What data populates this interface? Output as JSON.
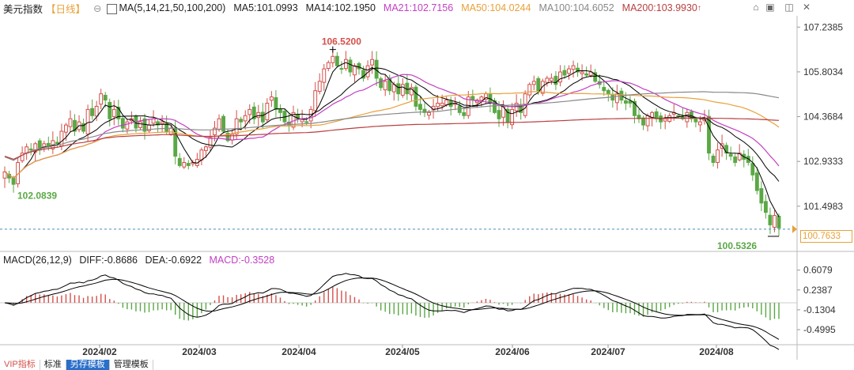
{
  "toolbar": {
    "title": "美元指数",
    "period": "【日线】",
    "dot": "⊖",
    "ma_label": "MA(5,14,21,50,100,200)",
    "ma5": "MA5:101.0993",
    "ma14": "MA14:102.1950",
    "ma21": "MA21:102.7156",
    "ma50": "MA50:104.0244",
    "ma100": "MA100:104.6052",
    "ma200": "MA200:103.9930",
    "ma200_arrow": "↑"
  },
  "window_controls": [
    "⌂",
    "▣",
    "◫",
    "✕"
  ],
  "macd": {
    "label": "MACD(26,12,9)",
    "diff": "DIFF:-0.8686",
    "dea": "DEA:-0.6922",
    "macd_val": "MACD:-0.3528"
  },
  "annotations": {
    "high": "106.5200",
    "low_left": "102.0839",
    "low_right": "100.5326",
    "last_price": "100.7633"
  },
  "bottom_tabs": [
    "VIP指标",
    "标准",
    "另存模板",
    "管理模板"
  ],
  "colors": {
    "up": "#d4504a",
    "down": "#5aa845",
    "ma5": "#000000",
    "ma14": "#000000",
    "ma21": "#c33fc3",
    "ma50": "#e8a13a",
    "ma100": "#888888",
    "ma200": "#b84040",
    "diff": "#000000",
    "dea": "#000000"
  },
  "chart_data": [
    {
      "type": "candlestick",
      "title": "美元指数 日线",
      "x_ticks": [
        "2024/02",
        "2024/03",
        "2024/04",
        "2024/05",
        "2024/06",
        "2024/07",
        "2024/08"
      ],
      "y_ticks": [
        107.2385,
        105.8034,
        104.3684,
        102.9333,
        101.4983
      ],
      "ylim": [
        100.1,
        107.6
      ],
      "price_line": 100.7633,
      "series_closes": [
        102.6,
        102.4,
        102.2,
        102.9,
        103.2,
        103.4,
        103.3,
        103.5,
        103.3,
        103.5,
        103.4,
        103.6,
        103.5,
        103.9,
        104.1,
        104.3,
        103.9,
        104.2,
        103.9,
        104.6,
        104.4,
        104.7,
        105.1,
        104.9,
        104.3,
        104.6,
        104.3,
        104.0,
        104.2,
        104.3,
        104.0,
        104.2,
        103.9,
        104.1,
        104.3,
        104.1,
        104.2,
        103.9,
        104.0,
        103.1,
        102.8,
        102.9,
        102.8,
        102.9,
        103.0,
        103.3,
        103.4,
        103.7,
        104.0,
        104.3,
        103.9,
        103.6,
        103.8,
        104.3,
        104.2,
        104.4,
        104.6,
        104.3,
        104.5,
        104.2,
        104.8,
        105.0,
        104.6,
        104.5,
        104.2,
        104.1,
        104.5,
        104.3,
        104.3,
        104.2,
        104.6,
        105.2,
        105.5,
        105.9,
        106.1,
        106.3,
        106.0,
        105.9,
        106.2,
        105.8,
        106.0,
        105.9,
        105.6,
        106.0,
        106.2,
        105.6,
        105.3,
        105.5,
        105.2,
        105.4,
        105.1,
        105.4,
        105.1,
        105.3,
        104.7,
        104.6,
        104.5,
        104.5,
        104.7,
        104.8,
        104.8,
        104.9,
        104.7,
        104.8,
        104.5,
        104.4,
        105.0,
        104.9,
        104.9,
        105.0,
        105.1,
        104.8,
        104.5,
        104.3,
        104.7,
        104.2,
        104.6,
        104.8,
        104.5,
        105.1,
        105.4,
        105.5,
        105.2,
        105.5,
        105.6,
        105.6,
        105.4,
        105.8,
        105.7,
        105.9,
        106.0,
        105.8,
        105.8,
        105.7,
        105.8,
        105.5,
        105.4,
        105.2,
        105.1,
        104.9,
        105.1,
        104.9,
        104.8,
        104.8,
        104.4,
        104.3,
        104.1,
        104.4,
        104.5,
        104.3,
        104.2,
        104.3,
        104.4,
        104.5,
        104.4,
        104.3,
        104.5,
        104.3,
        104.2,
        104.2,
        104.3,
        103.2,
        102.9,
        103.3,
        103.5,
        103.2,
        103.1,
        102.9,
        103.2,
        103.0,
        102.9,
        102.5,
        102.0,
        101.6,
        101.3,
        100.9,
        101.2,
        100.8
      ],
      "moving_averages": [
        "MA5",
        "MA14",
        "MA21",
        "MA50",
        "MA100",
        "MA200"
      ]
    },
    {
      "type": "bar",
      "title": "MACD(26,12,9)",
      "y_ticks": [
        0.6079,
        0.2387,
        -0.1304,
        -0.4995
      ],
      "ylim": [
        -0.75,
        0.75
      ],
      "series": [
        {
          "name": "DIFF",
          "type": "line"
        },
        {
          "name": "DEA",
          "type": "line"
        },
        {
          "name": "MACD",
          "type": "bar"
        }
      ]
    }
  ]
}
